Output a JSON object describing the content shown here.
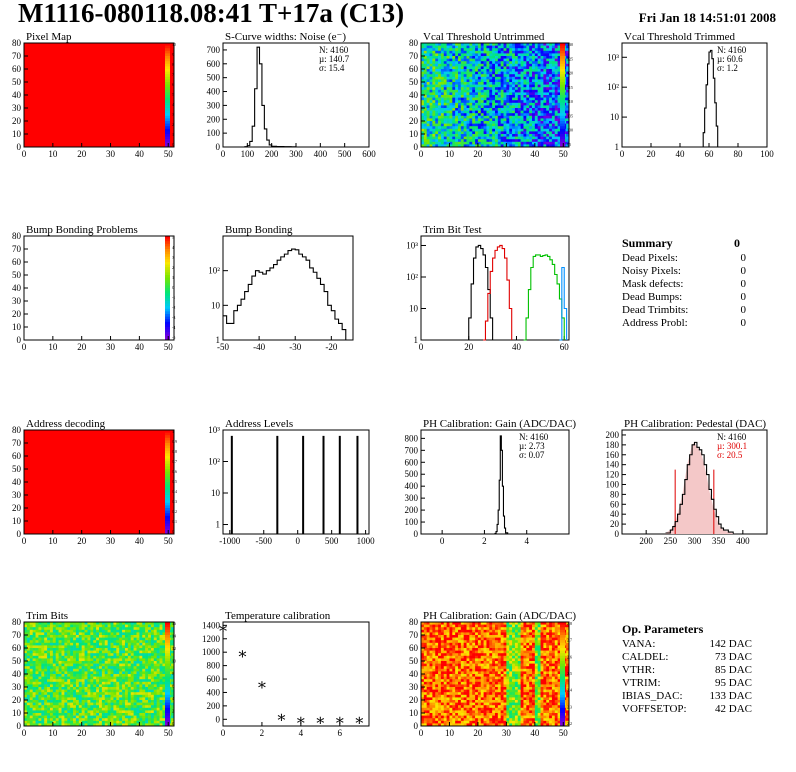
{
  "header": {
    "title": "M1116-080118.08:41 T+17a (C13)",
    "date": "Fri Jan 18 14:51:01 2008"
  },
  "colors": {
    "black": "#000000",
    "red": "#e00000",
    "green": "#00c000",
    "map_red": "#ff0000"
  },
  "chart_data": [
    {
      "id": "pixel-map",
      "type": "heatmap",
      "title": "Pixel Map",
      "xticks": [
        0,
        10,
        20,
        30,
        40,
        50
      ],
      "yticks": [
        0,
        10,
        20,
        30,
        40,
        50,
        60,
        70,
        80
      ],
      "xlim": [
        0,
        52
      ],
      "ylim": [
        0,
        80
      ],
      "fill": "uniform-red",
      "zticks": [
        "10",
        "9",
        "8",
        "7",
        "6",
        "5",
        "4",
        "3",
        "2",
        "1",
        "0"
      ]
    },
    {
      "id": "scurve-noise",
      "type": "line",
      "title": "S-Curve widths: Noise (e⁻)",
      "xlim": [
        0,
        600
      ],
      "ylim": [
        0,
        750
      ],
      "xticks": [
        0,
        100,
        200,
        300,
        400,
        500,
        600
      ],
      "yticks": [
        0,
        100,
        200,
        300,
        400,
        500,
        600,
        700
      ],
      "stats": [
        "N: 4160",
        "µ:  140.7",
        "σ:  15.4"
      ],
      "series": [
        {
          "color": "#000000",
          "x": [
            80,
            90,
            100,
            110,
            120,
            130,
            140,
            150,
            160,
            170,
            180,
            190,
            200,
            220,
            250,
            280,
            300
          ],
          "y": [
            0,
            2,
            10,
            40,
            150,
            420,
            720,
            600,
            300,
            130,
            50,
            15,
            5,
            3,
            2,
            1,
            0
          ]
        }
      ]
    },
    {
      "id": "vcal-untrimmed",
      "type": "heatmap",
      "title": "Vcal Threshold Untrimmed",
      "xlim": [
        0,
        52
      ],
      "ylim": [
        0,
        80
      ],
      "xticks": [
        0,
        10,
        20,
        30,
        40,
        50
      ],
      "yticks": [
        0,
        10,
        20,
        30,
        40,
        50,
        60,
        70,
        80
      ],
      "zticks": [
        "130",
        "125",
        "120",
        "115",
        "110",
        "105",
        "100",
        "95"
      ],
      "fill": "noise-cool"
    },
    {
      "id": "vcal-trimmed",
      "type": "line",
      "title": "Vcal Threshold Trimmed",
      "xlim": [
        0,
        100
      ],
      "log_y": true,
      "ylim": [
        1,
        3000
      ],
      "xticks": [
        0,
        20,
        40,
        60,
        80,
        100
      ],
      "yticks": [
        "1",
        "10",
        "10²",
        "10³"
      ],
      "stats": [
        "N: 4160",
        "µ:  60.6",
        "σ:   1.2"
      ],
      "series": [
        {
          "color": "#000000",
          "x": [
            55,
            56,
            57,
            58,
            59,
            60,
            61,
            62,
            63,
            64,
            65,
            66
          ],
          "y": [
            1,
            3,
            20,
            120,
            600,
            1500,
            1700,
            900,
            200,
            30,
            5,
            1
          ]
        }
      ]
    },
    {
      "id": "bump-problems",
      "type": "heatmap",
      "title": "Bump Bonding Problems",
      "xlim": [
        0,
        52
      ],
      "ylim": [
        0,
        80
      ],
      "xticks": [
        0,
        10,
        20,
        30,
        40,
        50
      ],
      "yticks": [
        0,
        10,
        20,
        30,
        40,
        50,
        60,
        70,
        80
      ],
      "zticks": [
        "5",
        "4",
        "3",
        "2",
        "1",
        "0",
        "-1",
        "-2",
        "-3",
        "-4",
        "-5"
      ],
      "fill": "empty"
    },
    {
      "id": "bump-bonding",
      "type": "line",
      "title": "Bump Bonding",
      "xlim": [
        -50,
        -14
      ],
      "log_y": true,
      "ylim": [
        1,
        1000
      ],
      "xticks": [
        -50,
        -40,
        -30,
        -20
      ],
      "yticks": [
        "1",
        "10",
        "10²"
      ],
      "series": [
        {
          "color": "#000000",
          "x": [
            -50,
            -49,
            -48,
            -47,
            -46,
            -45,
            -44,
            -43,
            -42,
            -41,
            -40,
            -39,
            -38,
            -37,
            -36,
            -35,
            -34,
            -33,
            -32,
            -31,
            -30,
            -29,
            -28,
            -27,
            -26,
            -25,
            -24,
            -23,
            -22,
            -21,
            -20,
            -19,
            -18,
            -17,
            -16
          ],
          "y": [
            5,
            3,
            3,
            7,
            10,
            15,
            25,
            40,
            70,
            100,
            90,
            80,
            100,
            120,
            150,
            200,
            250,
            300,
            380,
            420,
            400,
            300,
            250,
            200,
            120,
            90,
            60,
            40,
            25,
            10,
            7,
            4,
            3,
            2,
            1
          ]
        }
      ]
    },
    {
      "id": "trim-bit-test",
      "type": "line",
      "title": "Trim Bit Test",
      "xlim": [
        0,
        62
      ],
      "log_y": true,
      "ylim": [
        1,
        2000
      ],
      "xticks": [
        0,
        20,
        40,
        60
      ],
      "yticks": [
        "1",
        "10",
        "10²",
        "10³"
      ],
      "series": [
        {
          "color": "#000000",
          "x": [
            19,
            20,
            21,
            22,
            23,
            24,
            25,
            26,
            27,
            28,
            29,
            30
          ],
          "y": [
            1,
            5,
            60,
            400,
            900,
            1000,
            800,
            500,
            200,
            40,
            5,
            1
          ]
        },
        {
          "color": "#e00000",
          "x": [
            26,
            27,
            28,
            29,
            30,
            31,
            32,
            33,
            34,
            35,
            36,
            37,
            38
          ],
          "y": [
            1,
            4,
            30,
            150,
            400,
            700,
            900,
            1000,
            800,
            400,
            80,
            10,
            1
          ]
        },
        {
          "color": "#00c000",
          "x": [
            43,
            44,
            45,
            46,
            47,
            48,
            49,
            50,
            51,
            52,
            53,
            54,
            55,
            56,
            57,
            58,
            59,
            60
          ],
          "y": [
            1,
            5,
            40,
            200,
            450,
            500,
            500,
            450,
            480,
            500,
            450,
            350,
            250,
            120,
            60,
            20,
            5,
            1
          ]
        },
        {
          "color": "#0090ff",
          "x": [
            58,
            59,
            60,
            61
          ],
          "y": [
            1,
            200,
            10,
            1
          ]
        }
      ]
    },
    {
      "id": "address-decoding",
      "type": "heatmap",
      "title": "Address decoding",
      "xlim": [
        0,
        52
      ],
      "ylim": [
        0,
        80
      ],
      "xticks": [
        0,
        10,
        20,
        30,
        40,
        50
      ],
      "yticks": [
        0,
        10,
        20,
        30,
        40,
        50,
        60,
        70,
        80
      ],
      "zticks": [
        "1",
        "0.9",
        "0.8",
        "0.7",
        "0.6",
        "0.5",
        "0.4",
        "0.3",
        "0.2",
        "0.1",
        "0"
      ],
      "fill": "uniform-red"
    },
    {
      "id": "address-levels",
      "type": "line",
      "title": "Address Levels",
      "xlim": [
        -1100,
        1050
      ],
      "log_y": true,
      "ylim": [
        0.5,
        1000
      ],
      "xticks": [
        -1000,
        -500,
        0,
        500,
        1000
      ],
      "yticks": [
        "1",
        "10",
        "10²",
        "10³"
      ],
      "peaks": [
        -970,
        -300,
        80,
        380,
        620,
        880
      ],
      "peak_height": 650
    },
    {
      "id": "ph-gain",
      "type": "line",
      "title": "PH Calibration: Gain (ADC/DAC)",
      "xlim": [
        -1,
        6
      ],
      "ylim": [
        0,
        870
      ],
      "xticks": [
        0,
        2,
        4
      ],
      "yticks": [
        0,
        100,
        200,
        300,
        400,
        500,
        600,
        700,
        800
      ],
      "stats": [
        "N: 4160",
        "µ:  2.73",
        "σ:  0.07"
      ],
      "series": [
        {
          "color": "#000000",
          "x": [
            2.4,
            2.5,
            2.55,
            2.6,
            2.65,
            2.7,
            2.75,
            2.8,
            2.85,
            2.9,
            2.95,
            3.0,
            3.1
          ],
          "y": [
            0,
            5,
            20,
            80,
            200,
            450,
            820,
            700,
            400,
            150,
            50,
            10,
            0
          ]
        }
      ]
    },
    {
      "id": "ph-pedestal",
      "type": "line",
      "title": "PH Calibration: Pedestal (DAC)",
      "xlim": [
        150,
        450
      ],
      "ylim": [
        0,
        210
      ],
      "xticks": [
        200,
        250,
        300,
        350,
        400
      ],
      "yticks": [
        0,
        20,
        40,
        60,
        80,
        100,
        120,
        140,
        160,
        180,
        200
      ],
      "stats": [
        "N: 4160"
      ],
      "stats_red": [
        "µ:  300.1",
        "σ:  20.5"
      ],
      "markers": [
        260,
        340
      ],
      "series": [
        {
          "color": "#000000",
          "x": [
            240,
            250,
            255,
            260,
            265,
            270,
            275,
            280,
            285,
            290,
            295,
            300,
            305,
            310,
            315,
            320,
            325,
            330,
            335,
            340,
            345,
            350,
            355,
            360,
            370,
            380
          ],
          "y": [
            2,
            8,
            15,
            25,
            40,
            60,
            80,
            110,
            140,
            160,
            180,
            185,
            175,
            170,
            160,
            140,
            120,
            90,
            70,
            50,
            35,
            20,
            12,
            8,
            4,
            1
          ]
        }
      ]
    },
    {
      "id": "trim-bits",
      "type": "heatmap",
      "title": "Trim Bits",
      "xlim": [
        0,
        52
      ],
      "ylim": [
        0,
        80
      ],
      "xticks": [
        0,
        10,
        20,
        30,
        40,
        50
      ],
      "yticks": [
        0,
        10,
        20,
        30,
        40,
        50,
        60,
        70,
        80
      ],
      "zticks": [
        "16",
        "14",
        "12",
        "10",
        "8",
        "6",
        "4",
        "2",
        "0"
      ],
      "fill": "noise-warm"
    },
    {
      "id": "temp-calibration",
      "type": "scatter",
      "title": "Temperature calibration",
      "xlim": [
        0,
        7.5
      ],
      "ylim": [
        -100,
        1450
      ],
      "xticks": [
        0,
        2,
        4,
        6
      ],
      "yticks": [
        0,
        200,
        400,
        600,
        800,
        1000,
        1200,
        1400
      ],
      "series": [
        {
          "color": "#000000",
          "x": [
            0,
            1,
            2,
            3,
            4,
            5,
            6,
            7
          ],
          "y": [
            1350,
            970,
            510,
            30,
            -20,
            -20,
            -20,
            -20
          ]
        }
      ]
    },
    {
      "id": "ph-gain-map",
      "type": "heatmap",
      "title": "PH Calibration: Gain (ADC/DAC)",
      "xlim": [
        0,
        52
      ],
      "ylim": [
        0,
        80
      ],
      "xticks": [
        0,
        10,
        20,
        30,
        40,
        50
      ],
      "yticks": [
        0,
        10,
        20,
        30,
        40,
        50,
        60,
        70,
        80
      ],
      "zticks": [
        "2.8",
        "2.7",
        "2.6",
        "2.5",
        "2.4",
        "2.3",
        "2.2"
      ],
      "fill": "noise-hot"
    }
  ],
  "summary": {
    "title": "Summary",
    "total": "0",
    "rows": [
      {
        "label": "Dead Pixels:",
        "value": "0"
      },
      {
        "label": "Noisy Pixels:",
        "value": "0"
      },
      {
        "label": "Mask defects:",
        "value": "0"
      },
      {
        "label": "Dead Bumps:",
        "value": "0"
      },
      {
        "label": "Dead Trimbits:",
        "value": "0"
      },
      {
        "label": "Address Probl:",
        "value": "0"
      }
    ]
  },
  "op_params": {
    "title": "Op. Parameters",
    "rows": [
      {
        "label": "VANA:",
        "value": "142 DAC"
      },
      {
        "label": "CALDEL:",
        "value": "73 DAC"
      },
      {
        "label": "VTHR:",
        "value": "85 DAC"
      },
      {
        "label": "VTRIM:",
        "value": "95 DAC"
      },
      {
        "label": "IBIAS_DAC:",
        "value": "133 DAC"
      },
      {
        "label": "VOFFSETOP:",
        "value": "42 DAC"
      }
    ]
  }
}
